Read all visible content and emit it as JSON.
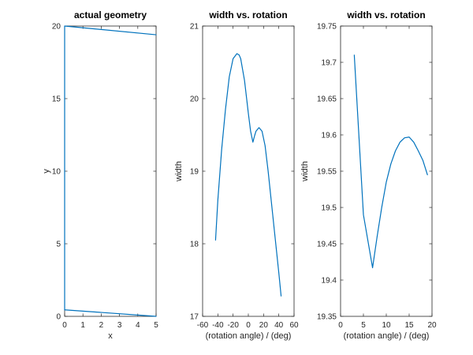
{
  "chart_data": [
    {
      "type": "line",
      "title": "actual geometry",
      "xlabel": "x",
      "ylabel": "y",
      "xlim": [
        0,
        5
      ],
      "ylim": [
        0,
        20
      ],
      "xticks": [
        0,
        1,
        2,
        3,
        4,
        5
      ],
      "yticks": [
        0,
        5,
        10,
        15,
        20
      ],
      "color": "#0072BD",
      "series": [
        {
          "x": [
            0,
            0,
            5
          ],
          "y": [
            0.45,
            20,
            19.4
          ]
        },
        {
          "x": [
            0,
            5
          ],
          "y": [
            0.45,
            0
          ]
        }
      ]
    },
    {
      "type": "line",
      "title": "width vs. rotation",
      "xlabel": "(rotation angle) / (deg)",
      "ylabel": "width",
      "xlim": [
        -60,
        60
      ],
      "ylim": [
        17,
        21
      ],
      "xticks": [
        -60,
        -40,
        -20,
        0,
        20,
        40,
        60
      ],
      "yticks": [
        17,
        18,
        19,
        20,
        21
      ],
      "color": "#0072BD",
      "series": [
        {
          "x": [
            -43,
            -40,
            -35,
            -30,
            -25,
            -20,
            -15,
            -12,
            -10,
            -5,
            0,
            3,
            6,
            8,
            10,
            14,
            18,
            22,
            26,
            30,
            35,
            40,
            43
          ],
          "y": [
            18.05,
            18.6,
            19.3,
            19.85,
            20.3,
            20.55,
            20.62,
            20.6,
            20.55,
            20.25,
            19.8,
            19.55,
            19.4,
            19.48,
            19.55,
            19.6,
            19.55,
            19.35,
            19.0,
            18.6,
            18.1,
            17.6,
            17.28
          ]
        }
      ]
    },
    {
      "type": "line",
      "title": "width vs. rotation",
      "xlabel": "(rotation angle) / (deg)",
      "ylabel": "width",
      "xlim": [
        0,
        20
      ],
      "ylim": [
        19.35,
        19.75
      ],
      "xticks": [
        0,
        5,
        10,
        15,
        20
      ],
      "yticks": [
        19.35,
        19.4,
        19.45,
        19.5,
        19.55,
        19.6,
        19.65,
        19.7,
        19.75
      ],
      "color": "#0072BD",
      "series": [
        {
          "x": [
            3,
            5,
            7,
            8,
            9,
            10,
            11,
            12,
            13,
            14,
            15,
            16,
            17,
            18,
            19
          ],
          "y": [
            19.71,
            19.49,
            19.417,
            19.46,
            19.5,
            19.535,
            19.56,
            19.578,
            19.59,
            19.596,
            19.597,
            19.59,
            19.578,
            19.565,
            19.545
          ]
        }
      ]
    }
  ]
}
